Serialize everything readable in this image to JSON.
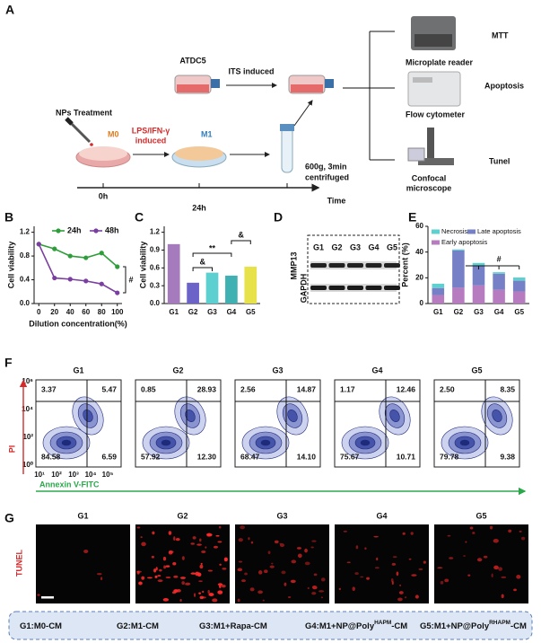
{
  "panel_a": {
    "label": "A",
    "nps_treatment": "NPs Treatment",
    "m0": "M0",
    "lps": "LPS/IFN-γ",
    "induced": "induced",
    "m1": "M1",
    "atdc5": "ATDC5",
    "its": "ITS induced",
    "centrifuge_1": "600g, 3min",
    "centrifuge_2": "centrifuged",
    "t0": "0h",
    "t1": "24h",
    "time": "Time",
    "mtt": "MTT",
    "microplate": "Microplate reader",
    "apoptosis": "Apoptosis",
    "flow": "Flow cytometer",
    "tunel": "Tunel",
    "confocal_1": "Confocal",
    "confocal_2": "microscope"
  },
  "chart_data": [
    {
      "panel": "B",
      "type": "line",
      "xlabel": "Dilution concentration(%)",
      "ylabel": "Cell viability",
      "x": [
        0,
        20,
        40,
        60,
        80,
        100
      ],
      "series": [
        {
          "name": "24h",
          "color": "#2e9e3a",
          "values": [
            1.0,
            0.92,
            0.8,
            0.77,
            0.85,
            0.62
          ]
        },
        {
          "name": "48h",
          "color": "#7a3fa0",
          "values": [
            1.0,
            0.43,
            0.41,
            0.38,
            0.33,
            0.18
          ]
        }
      ],
      "xlim": [
        -6,
        106
      ],
      "xticks": [
        0,
        20,
        40,
        60,
        80,
        100
      ],
      "ylim": [
        0,
        1.3
      ],
      "yticks": [
        {
          "value": 0,
          "label": "0.0"
        },
        0.4,
        0.8,
        1.2
      ],
      "annotations": [
        "#"
      ]
    },
    {
      "panel": "C",
      "type": "bar",
      "ylabel": "Cell viability",
      "categories": [
        "G1",
        "G2",
        "G3",
        "G4",
        "G5"
      ],
      "values": [
        1.0,
        0.35,
        0.52,
        0.47,
        0.62
      ],
      "colors": [
        "#a57bbd",
        "#6c63c9",
        "#5ccfd0",
        "#3fb1b3",
        "#e8e24a"
      ],
      "ylim": [
        0,
        1.3
      ],
      "yticks": [
        {
          "value": 0,
          "label": "0.0"
        },
        0.3,
        0.6,
        0.9,
        1.2
      ],
      "annotations": [
        "&",
        "**",
        "&"
      ]
    },
    {
      "panel": "E",
      "type": "stacked_bar",
      "ylabel": "Percent (%)",
      "categories": [
        "G1",
        "G2",
        "G3",
        "G4",
        "G5"
      ],
      "series": [
        {
          "name": "Early apoptosis",
          "color": "#b77cbf",
          "values": [
            6.59,
            12.3,
            14.1,
            10.71,
            9.38
          ]
        },
        {
          "name": "Late apoptosis",
          "color": "#7680c6",
          "values": [
            5.47,
            28.93,
            14.87,
            12.46,
            8.35
          ]
        },
        {
          "name": "Necrosis",
          "color": "#5fd0d0",
          "values": [
            3.37,
            0.85,
            2.56,
            1.17,
            2.5
          ]
        }
      ],
      "ylim": [
        0,
        60
      ],
      "yticks": [
        0,
        20,
        40,
        60
      ],
      "annotations": [
        "#"
      ]
    }
  ],
  "panel_d": {
    "label": "D",
    "groups": [
      "G1",
      "G2",
      "G3",
      "G4",
      "G5"
    ],
    "bands": [
      "MMP13",
      "GAPDH"
    ]
  },
  "panel_f": {
    "label": "F",
    "ylabel": "PI",
    "xlabel": "Annexin V-FITC",
    "y_ticks": [
      "10⁶",
      "10⁴",
      "10²",
      "10⁰"
    ],
    "x_ticks": [
      "10¹",
      "10²",
      "10³",
      "10⁴",
      "10⁵"
    ],
    "groups": [
      {
        "name": "G1",
        "ul": "3.37",
        "ur": "5.47",
        "ll": "84.58",
        "lr": "6.59"
      },
      {
        "name": "G2",
        "ul": "0.85",
        "ur": "28.93",
        "ll": "57.92",
        "lr": "12.30"
      },
      {
        "name": "G3",
        "ul": "2.56",
        "ur": "14.87",
        "ll": "68.47",
        "lr": "14.10"
      },
      {
        "name": "G4",
        "ul": "1.17",
        "ur": "12.46",
        "ll": "75.67",
        "lr": "10.71"
      },
      {
        "name": "G5",
        "ul": "2.50",
        "ur": "8.35",
        "ll": "79.78",
        "lr": "9.38"
      }
    ]
  },
  "panel_g": {
    "label": "G",
    "ylabel": "TUNEL",
    "groups": [
      "G1",
      "G2",
      "G3",
      "G4",
      "G5"
    ]
  },
  "legend": [
    {
      "text": "G1:M0-CM"
    },
    {
      "text": "G2:M1-CM"
    },
    {
      "text": "G3:M1+Rapa-CM"
    },
    {
      "text": "G4:M1+NP@Poly",
      "sup": "HAPM",
      "tail": "-CM"
    },
    {
      "text": "G5:M1+NP@Poly",
      "sup": "RHAPM",
      "tail": "-CM"
    }
  ]
}
